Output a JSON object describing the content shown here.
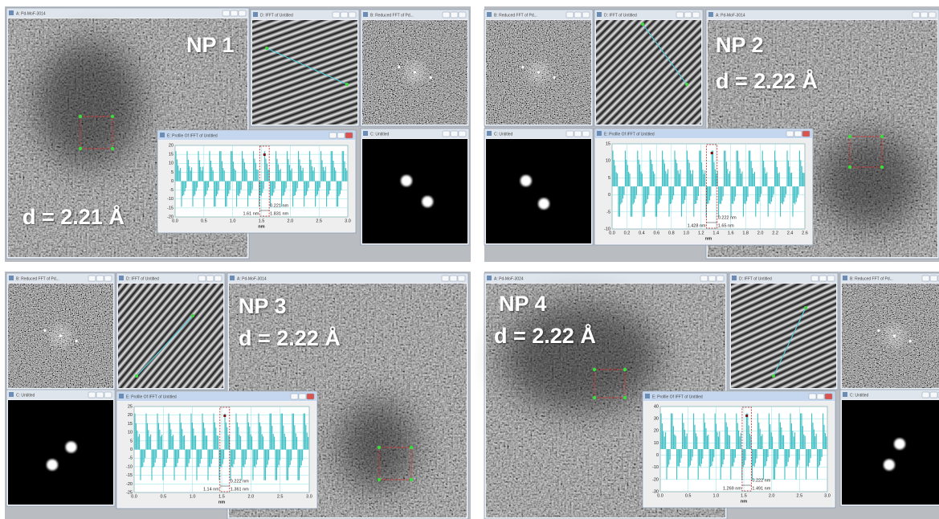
{
  "panels": [
    {
      "label": "NP 1",
      "d": "d = 2.21 Å",
      "windows": {
        "image": "A: Pd-MoF-3014",
        "ifft": "D: IFFT of Untitled",
        "fft": "B: Reduced FFT of Pd...",
        "mask": "C: Untitled",
        "profile": "E: Profile Of IFFT of Untitled"
      },
      "profile": {
        "yticks": [
          "20",
          "15",
          "10",
          "5",
          "0",
          "-5",
          "-10",
          "-15",
          "-20"
        ],
        "xticks": [
          "0.0",
          "0.5",
          "1.0",
          "1.5",
          "2.0",
          "2.5",
          "3.0"
        ],
        "xlabel": "nm",
        "spacing": "0.221 nm",
        "start": "1.61 nm",
        "end": "1.831 nm"
      }
    },
    {
      "label": "NP 2",
      "d": "d = 2.22 Å",
      "windows": {
        "fft": "B: Reduced FFT of Pd...",
        "ifft": "D: IFFT of Untitled",
        "image": "A: Pd-MoF-3014",
        "mask": "C: Untitled",
        "profile": "E: Profile Of IFFT of Untitled"
      },
      "profile": {
        "yticks": [
          "15",
          "10",
          "5",
          "0",
          "-5",
          "-10"
        ],
        "xticks": [
          "0.0",
          "0.2",
          "0.4",
          "0.6",
          "0.8",
          "1.0",
          "1.2",
          "1.4",
          "1.6",
          "1.8",
          "2.0",
          "2.2",
          "2.4",
          "2.6"
        ],
        "xlabel": "nm",
        "spacing": "0.222 nm",
        "start": "1.428 nm",
        "end": "1.65 nm"
      }
    },
    {
      "label": "NP 3",
      "d": "d = 2.22 Å",
      "windows": {
        "fft": "B: Reduced FFT of Pd...",
        "ifft": "D: IFFT of Untitled",
        "image": "A: Pd-MoF-3014",
        "mask": "C: Untitled",
        "profile": "E: Profile Of IFFT of Untitled"
      },
      "profile": {
        "yticks": [
          "25",
          "20",
          "15",
          "10",
          "5",
          "0",
          "-5",
          "-10",
          "-15",
          "-20",
          "-25"
        ],
        "xticks": [
          "0.0",
          "0.5",
          "1.0",
          "1.5",
          "2.0",
          "2.5",
          "3.0"
        ],
        "xlabel": "nm",
        "spacing": "0.222 nm",
        "start": "1.14 nm",
        "end": "1.361 nm"
      }
    },
    {
      "label": "NP 4",
      "d": "d = 2.22 Å",
      "windows": {
        "image": "A: Pd-MoF-3024",
        "ifft": "D: IFFT of Untitled",
        "fft": "B: Reduced FFT of Pd...",
        "mask": "C: Untitled",
        "profile": "E: Profile Of IFFT of Untitled"
      },
      "profile": {
        "yticks": [
          "40",
          "30",
          "20",
          "10",
          "0",
          "-10",
          "-20",
          "-30"
        ],
        "xticks": [
          "0.0",
          "0.5",
          "1.0",
          "1.5",
          "2.0",
          "2.5",
          "3.0"
        ],
        "xlabel": "nm",
        "spacing": "0.222 nm",
        "start": "1.269 nm",
        "end": "1.491 nm"
      }
    }
  ]
}
